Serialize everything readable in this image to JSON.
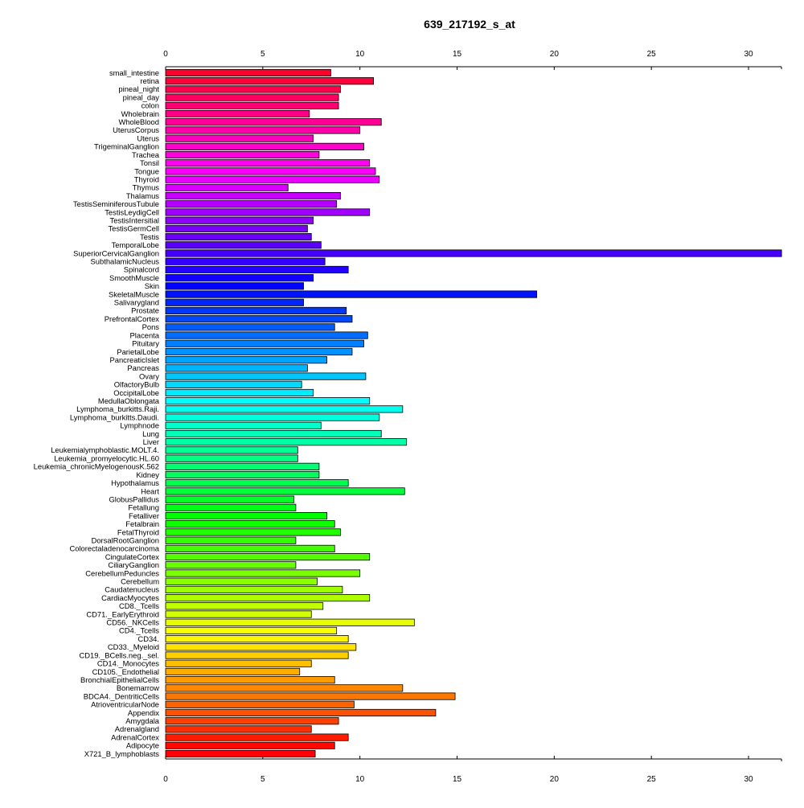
{
  "chart_data": {
    "type": "bar",
    "orientation": "horizontal",
    "title": "639_217192_s_at",
    "xlabel": "",
    "ylabel": "",
    "xlim": [
      0,
      31.7
    ],
    "xticks": [
      0,
      5,
      10,
      15,
      20,
      25,
      30
    ],
    "xticks_position": "top-and-bottom",
    "grid": false,
    "legend": "none",
    "color_scheme": "rainbow (red → magenta → blue → cyan → green → yellow → orange → red), bars outlined in black",
    "categories": [
      "small_intestine",
      "retina",
      "pineal_night",
      "pineal_day",
      "colon",
      "Wholebrain",
      "WholeBlood",
      "UterusCorpus",
      "Uterus",
      "TrigeminalGanglion",
      "Trachea",
      "Tonsil",
      "Tongue",
      "Thyroid",
      "Thymus",
      "Thalamus",
      "TestisSeminiferousTubule",
      "TestisLeydigCell",
      "TestisIntersitial",
      "TestisGermCell",
      "Testis",
      "TemporalLobe",
      "SuperiorCervicalGanglion",
      "SubthalamicNucleus",
      "Spinalcord",
      "SmoothMuscle",
      "Skin",
      "SkeletalMuscle",
      "Salivarygland",
      "Prostate",
      "PrefrontalCortex",
      "Pons",
      "Placenta",
      "Pituitary",
      "ParietalLobe",
      "PancreaticIslet",
      "Pancreas",
      "Ovary",
      "OlfactoryBulb",
      "OccipitalLobe",
      "MedullaOblongata",
      "Lymphoma_burkitts.Raji.",
      "Lymphoma_burkitts.Daudi.",
      "Lymphnode",
      "Lung",
      "Liver",
      "Leukemialymphoblastic.MOLT.4.",
      "Leukemia_promyelocytic.HL.60",
      "Leukemia_chronicMyelogenousK.562",
      "Kidney",
      "Hypothalamus",
      "Heart",
      "GlobusPallidus",
      "Fetallung",
      "Fetalliver",
      "Fetalbrain",
      "FetalThyroid",
      "DorsalRootGanglion",
      "Colorectaladenocarcinoma",
      "CingulateCortex",
      "CiliaryGanglion",
      "CerebellumPeduncles",
      "Cerebellum",
      "Caudatenucleus",
      "CardiacMyocytes",
      "CD8._Tcells",
      "CD71._EarlyErythroid",
      "CD56._NKCells",
      "CD4._Tcells",
      "CD34.",
      "CD33._Myeloid",
      "CD19._BCells.neg._sel.",
      "CD14._Monocytes",
      "CD105._Endothelial",
      "BronchialEpithelialCells",
      "Bonemarrow",
      "BDCA4._DentriticCells",
      "AtrioventricularNode",
      "Appendix",
      "Amygdala",
      "Adrenalgland",
      "AdrenalCortex",
      "Adipocyte",
      "X721_B_lymphoblasts"
    ],
    "values": [
      8.5,
      10.7,
      9.0,
      8.9,
      8.9,
      7.4,
      11.1,
      10.0,
      7.6,
      10.2,
      7.9,
      10.5,
      10.8,
      11.0,
      6.3,
      9.0,
      8.8,
      10.5,
      7.6,
      7.3,
      7.5,
      8.0,
      31.7,
      8.2,
      9.4,
      7.6,
      7.1,
      19.1,
      7.1,
      9.3,
      9.6,
      8.7,
      10.4,
      10.2,
      9.6,
      8.3,
      7.3,
      10.3,
      7.0,
      7.6,
      10.5,
      12.2,
      11.0,
      8.0,
      11.1,
      12.4,
      6.8,
      6.8,
      7.9,
      7.9,
      9.4,
      12.3,
      6.6,
      6.7,
      8.3,
      8.7,
      9.0,
      6.7,
      8.7,
      10.5,
      6.7,
      10.0,
      7.8,
      9.1,
      10.5,
      8.1,
      7.5,
      12.8,
      8.8,
      9.4,
      9.8,
      9.4,
      7.5,
      6.9,
      8.7,
      12.2,
      14.9,
      9.7,
      13.9,
      8.9,
      7.5,
      9.4,
      8.7,
      7.7
    ]
  }
}
